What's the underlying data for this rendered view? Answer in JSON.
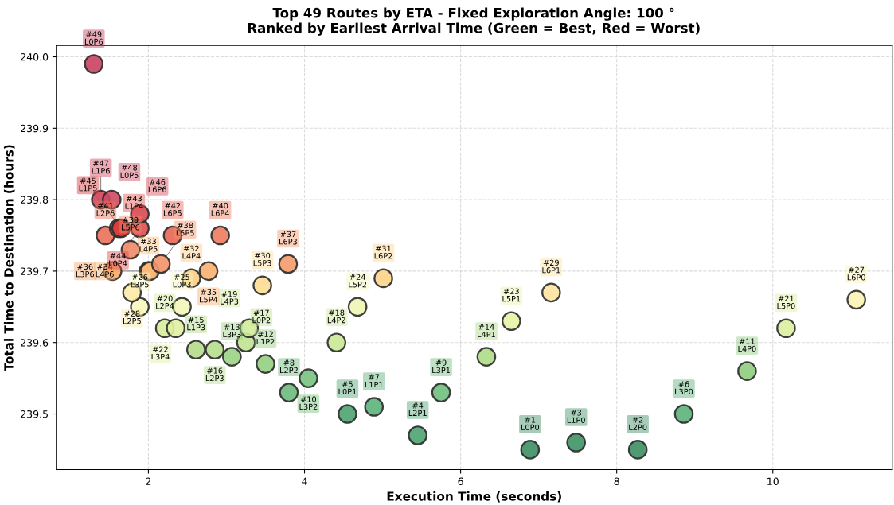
{
  "chart_data": {
    "type": "scatter",
    "title": "Top 49 Routes by ETA - Fixed Exploration Angle: 100 °",
    "subtitle": "Ranked by Earliest Arrival Time (Green = Best, Red = Worst)",
    "xlabel": "Execution Time (seconds)",
    "ylabel": "Total Time to Destination (hours)",
    "x": [
      6.89,
      8.27,
      7.48,
      5.45,
      4.55,
      8.86,
      4.89,
      3.8,
      5.75,
      4.05,
      9.67,
      3.5,
      3.07,
      6.33,
      2.61,
      2.85,
      3.25,
      4.41,
      3.29,
      2.21,
      10.17,
      2.35,
      6.65,
      4.68,
      2.43,
      1.89,
      11.07,
      1.79,
      7.16,
      3.46,
      5.01,
      2.55,
      2.0,
      2.02,
      2.77,
      1.54,
      3.79,
      2.16,
      1.77,
      2.92,
      1.45,
      2.31,
      1.62,
      1.89,
      1.65,
      1.89,
      1.39,
      1.53,
      1.3
    ],
    "values": [
      239.45,
      239.45,
      239.46,
      239.47,
      239.5,
      239.5,
      239.51,
      239.53,
      239.53,
      239.55,
      239.56,
      239.57,
      239.58,
      239.58,
      239.59,
      239.59,
      239.6,
      239.6,
      239.62,
      239.62,
      239.62,
      239.62,
      239.63,
      239.65,
      239.65,
      239.65,
      239.66,
      239.67,
      239.67,
      239.68,
      239.69,
      239.69,
      239.7,
      239.7,
      239.7,
      239.7,
      239.71,
      239.71,
      239.73,
      239.75,
      239.75,
      239.75,
      239.76,
      239.76,
      239.76,
      239.78,
      239.8,
      239.8,
      239.99
    ],
    "value_labels": [
      "#1\nL0P0",
      "#2\nL2P0",
      "#3\nL1P0",
      "#4\nL2P1",
      "#5\nL0P1",
      "#6\nL3P0",
      "#7\nL1P1",
      "#8\nL2P2",
      "#9\nL3P1",
      "#10\nL3P2",
      "#11\nL4P0",
      "#12\nL1P2",
      "#13\nL3P3",
      "#14\nL4P1",
      "#15\nL1P3",
      "#16\nL2P3",
      "#17\nL0P2",
      "#18\nL4P2",
      "#19\nL4P3",
      "#20\nL2P4",
      "#21\nL5P0",
      "#22\nL3P4",
      "#23\nL5P1",
      "#24\nL5P2",
      "#25\nL0P3",
      "#26\nL3P5",
      "#27\nL6P0",
      "#28\nL2P5",
      "#29\nL6P1",
      "#30\nL5P3",
      "#31\nL6P2",
      "#32\nL4P4",
      "#33\nL4P5",
      "#34\nL4P6",
      "#35\nL5P4",
      "#36\nL3P6",
      "#37\nL6P3",
      "#38\nL5P5",
      "#39\nL5P6",
      "#40\nL6P4",
      "#41\nL2P6",
      "#42\nL6P5",
      "#43\nL1P4",
      "#44\nL0P4",
      "#45\nL1P5",
      "#46\nL6P6",
      "#47\nL1P6",
      "#48\nL0P5",
      "#49\nL0P6"
    ],
    "colors": [
      "#3d8f63",
      "#3d8f63",
      "#3f9465",
      "#4ea470",
      "#4ea470",
      "#5bb27a",
      "#5bb27a",
      "#6cbb7c",
      "#70bf7e",
      "#78c37f",
      "#8fcd80",
      "#95cf82",
      "#9ad384",
      "#aedb88",
      "#b2dc8a",
      "#b6de8c",
      "#bfe390",
      "#cbe896",
      "#d2eb9a",
      "#d6ec9c",
      "#dcee9e",
      "#e0f0a2",
      "#e8f3a8",
      "#f0f6b2",
      "#f3f7b8",
      "#f6f7bd",
      "#fbf3b4",
      "#fde9a6",
      "#fde39e",
      "#fddb94",
      "#fdd48a",
      "#fdcc84",
      "#fcc27c",
      "#fbb674",
      "#fbb070",
      "#f9a86c",
      "#f59a6a",
      "#f3926a",
      "#f18866",
      "#ee7b5e",
      "#eb7059",
      "#e86656",
      "#e35450",
      "#e04c4c",
      "#d63a38",
      "#d84a55",
      "#d2445a",
      "#cf4a60",
      "#c8435f"
    ],
    "marker": "circle",
    "xlim": [
      0.82,
      11.53
    ],
    "ylim": [
      239.422,
      240.016
    ],
    "xticks": [
      2,
      4,
      6,
      8,
      10
    ],
    "yticks": [
      {
        "value": 239.5,
        "label": "239.5"
      },
      {
        "value": 239.6,
        "label": "239.6"
      },
      {
        "value": 239.7,
        "label": "239.7"
      },
      {
        "value": 239.8,
        "label": "239.8"
      },
      {
        "value": 239.9,
        "label": "239.9"
      },
      {
        "value": 240.0,
        "label": "240.0"
      }
    ],
    "grid": true
  }
}
